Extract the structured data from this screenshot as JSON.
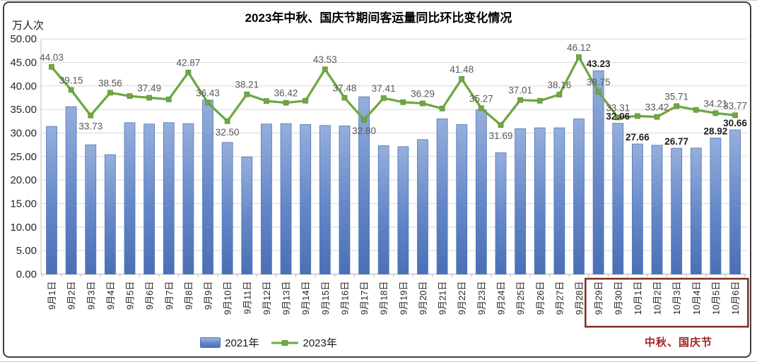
{
  "title": "2023年中秋、国庆节期间客运量同比环比变化情况",
  "y_axis_unit_label": "万人次",
  "legend": [
    {
      "label": "2021年",
      "type": "bar"
    },
    {
      "label": "2023年",
      "type": "line"
    }
  ],
  "colors": {
    "bar_top": "#95afdc",
    "bar_mid": "#6487c8",
    "bar_bottom": "#4b6fb6",
    "bar_border": "#5577b2",
    "line": "#6fa843",
    "marker_border": "#5e9038",
    "line_label": "#575757",
    "bar_label": "#1f1f1f",
    "grid": "#d9d9d9",
    "axis": "#bfbfbf",
    "tick_text": "#262626",
    "holiday_box": "#7d2b1d",
    "holiday_text": "#a32222",
    "frame_border": "#3f3f3f"
  },
  "chart_data": {
    "type": "bar+line combo",
    "title": "2023年中秋、国庆节期间客运量同比环比变化情况",
    "ylabel": "万人次",
    "ylim": [
      0,
      50
    ],
    "y_tick_step": 5,
    "y_ticks": [
      "0.00",
      "5.00",
      "10.00",
      "15.00",
      "20.00",
      "25.00",
      "30.00",
      "35.00",
      "40.00",
      "45.00",
      "50.00"
    ],
    "grid": "horizontal",
    "legend_position": "bottom-center",
    "categories": [
      "9月1日",
      "9月2日",
      "9月3日",
      "9月4日",
      "9月5日",
      "9月6日",
      "9月7日",
      "9月8日",
      "9月9日",
      "9月10日",
      "9月11日",
      "9月12日",
      "9月13日",
      "9月14日",
      "9月15日",
      "9月16日",
      "9月17日",
      "9月18日",
      "9月19日",
      "9月20日",
      "9月21日",
      "9月22日",
      "9月23日",
      "9月24日",
      "9月25日",
      "9月26日",
      "9月27日",
      "9月28日",
      "9月29日",
      "9月30日",
      "10月1日",
      "10月2日",
      "10月3日",
      "10月4日",
      "10月5日",
      "10月6日"
    ],
    "series": [
      {
        "name": "2021年",
        "type": "bar",
        "values": [
          31.4,
          35.6,
          27.5,
          25.4,
          32.2,
          31.9,
          32.2,
          32.0,
          37.0,
          28.0,
          24.9,
          31.9,
          32.0,
          31.8,
          31.6,
          31.5,
          37.7,
          27.3,
          27.1,
          28.6,
          33.0,
          31.8,
          34.9,
          25.8,
          30.9,
          31.1,
          31.1,
          33.0,
          43.23,
          32.06,
          27.66,
          27.4,
          26.77,
          26.8,
          28.92,
          30.66
        ],
        "labels": [
          null,
          null,
          null,
          null,
          null,
          null,
          null,
          null,
          null,
          null,
          null,
          null,
          null,
          null,
          null,
          null,
          null,
          null,
          null,
          null,
          null,
          null,
          null,
          null,
          null,
          null,
          null,
          null,
          "43.23",
          "32.06",
          "27.66",
          null,
          "26.77",
          null,
          "28.92",
          "30.66"
        ]
      },
      {
        "name": "2023年",
        "type": "line",
        "values": [
          44.03,
          39.15,
          33.73,
          38.56,
          37.85,
          37.49,
          37.15,
          42.87,
          36.43,
          32.5,
          38.21,
          36.8,
          36.42,
          36.85,
          43.53,
          37.48,
          32.8,
          37.41,
          36.55,
          36.29,
          35.2,
          41.48,
          35.27,
          31.69,
          37.01,
          36.85,
          38.16,
          46.12,
          38.75,
          33.31,
          33.6,
          33.42,
          35.71,
          34.9,
          34.21,
          33.77
        ],
        "labels": [
          "44.03",
          "39.15",
          "33.73",
          "38.56",
          null,
          "37.49",
          null,
          "42.87",
          "36.43",
          "32.50",
          "38.21",
          null,
          "36.42",
          null,
          "43.53",
          "37.48",
          "32.80",
          "37.41",
          null,
          "36.29",
          null,
          "41.48",
          "35.27",
          "31.69",
          "37.01",
          null,
          "38.16",
          "46.12",
          "38.75",
          "33.31",
          null,
          "33.42",
          "35.71",
          null,
          "34.21",
          "33.77"
        ],
        "labels_below_indices": [
          2,
          9,
          16,
          23
        ]
      }
    ],
    "holiday": {
      "label": "中秋、国庆节",
      "start_category": "9月29日",
      "end_category": "10月6日"
    }
  }
}
